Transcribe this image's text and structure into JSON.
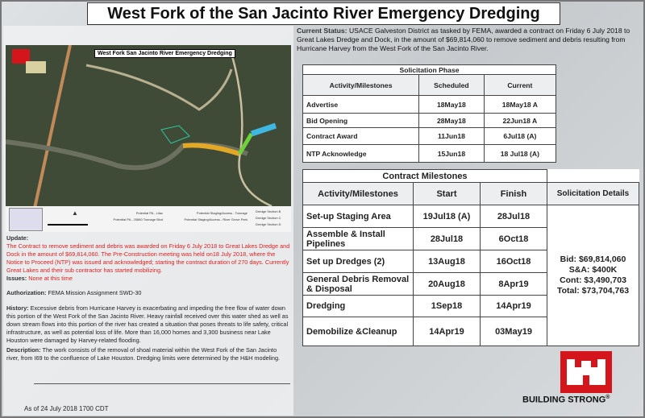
{
  "title": "West Fork of the San Jacinto River Emergency Dredging",
  "map": {
    "title": "West Fork San Jacinto River Emergency Dredging",
    "legend": [
      "Potential PA - Lilac",
      "Potential PA - 20860 Tonnage Blvd",
      "Potential Staging/Access - Tonnage",
      "Potential Staging/Access - River Grove Park",
      "Dredge Section B",
      "Dredge Section C",
      "Dredge Section D"
    ],
    "colors": {
      "section_b": "#3fb7e0",
      "section_c": "#6fd13a",
      "section_d": "#e3a826",
      "pa": "#2ec9a0"
    }
  },
  "update": {
    "label": "Update:",
    "text": "The Contract to remove sediment and debris was awarded on Friday 6 July 2018 to Great Lakes Dredge and Dock in the amount of $69,814,060. The Pre-Construction meeting was held on18 July 2018, where the Notice to Proceed (NTP) was issued and acknowledged; starting the contract duration of 270 days. Currently Great Lakes and their sub contractor has started mobilizing."
  },
  "issues": {
    "label": "Issues:",
    "text": "None at this time"
  },
  "authorization": {
    "label": "Authorization:",
    "text": "FEMA Mission Assignment SWD-30"
  },
  "history": {
    "label": "History:",
    "text": "Excessive debris from Hurricane Harvey is exacerbating and impeding the free flow of water down this portion of the West Fork of the San Jacinto River. Heavy rainfall received over this water shed as well as down stream flows into this portion of the river has created a situation that poses threats to life safety, critical infrastructure, as well as potential loss of life. More than 16,000 homes and 3,300 business near Lake Houston were damaged by Harvey-related flooding."
  },
  "description": {
    "label": "Description:",
    "text": "The work consists of the removal of shoal material within the West Fork of the San Jacinto river, from I69 to the confluence of Lake Houston. Dredging limits were determined by the H&H modeling."
  },
  "as_of": "As of 24 July 2018 1700 CDT",
  "current_status": {
    "label": "Current Status:",
    "text": "USACE Galveston District as tasked by FEMA, awarded a contract on Friday 6 July 2018 to Great Lakes Dredge and Dock, in the amount of $69,814,060 to remove sediment and debris resulting from Hurricane Harvey from the West Fork of the San Jacinto River."
  },
  "solicitation": {
    "title": "Solicitation Phase",
    "headers": [
      "Activity/Milestones",
      "Scheduled",
      "Current"
    ],
    "rows": [
      [
        "Advertise",
        "18May18",
        "18May18 A"
      ],
      [
        "Bid Opening",
        "28May18",
        "22Jun18 A"
      ],
      [
        "Contract Award",
        "11Jun18",
        "6Jul18 (A)"
      ],
      [
        "NTP Acknowledge",
        "15Jun18",
        "18 Jul18 (A)"
      ]
    ]
  },
  "contract": {
    "title": "Contract Milestones",
    "headers": [
      "Activity/Milestones",
      "Start",
      "Finish",
      "Solicitation Details"
    ],
    "rows": [
      [
        "Set-up Staging Area",
        "19Jul18 (A)",
        "28Jul18"
      ],
      [
        "Assemble & Install Pipelines",
        "28Jul18",
        "6Oct18"
      ],
      [
        "Set up Dredges (2)",
        "13Aug18",
        "16Oct18"
      ],
      [
        "General Debris Removal & Disposal",
        "20Aug18",
        "8Apr19"
      ],
      [
        "Dredging",
        "1Sep18",
        "14Apr19"
      ],
      [
        "Demobilize &Cleanup",
        "14Apr19",
        "03May19"
      ]
    ],
    "details": [
      "Bid: $69,814,060",
      "S&A: $400K",
      "Cont: $3,490,703",
      "Total: $73,704,763"
    ]
  },
  "footer": {
    "brand": "BUILDING STRONG",
    "registered": "®"
  },
  "colors": {
    "usace_red": "#d4151b",
    "update_text": "#dd2222"
  }
}
